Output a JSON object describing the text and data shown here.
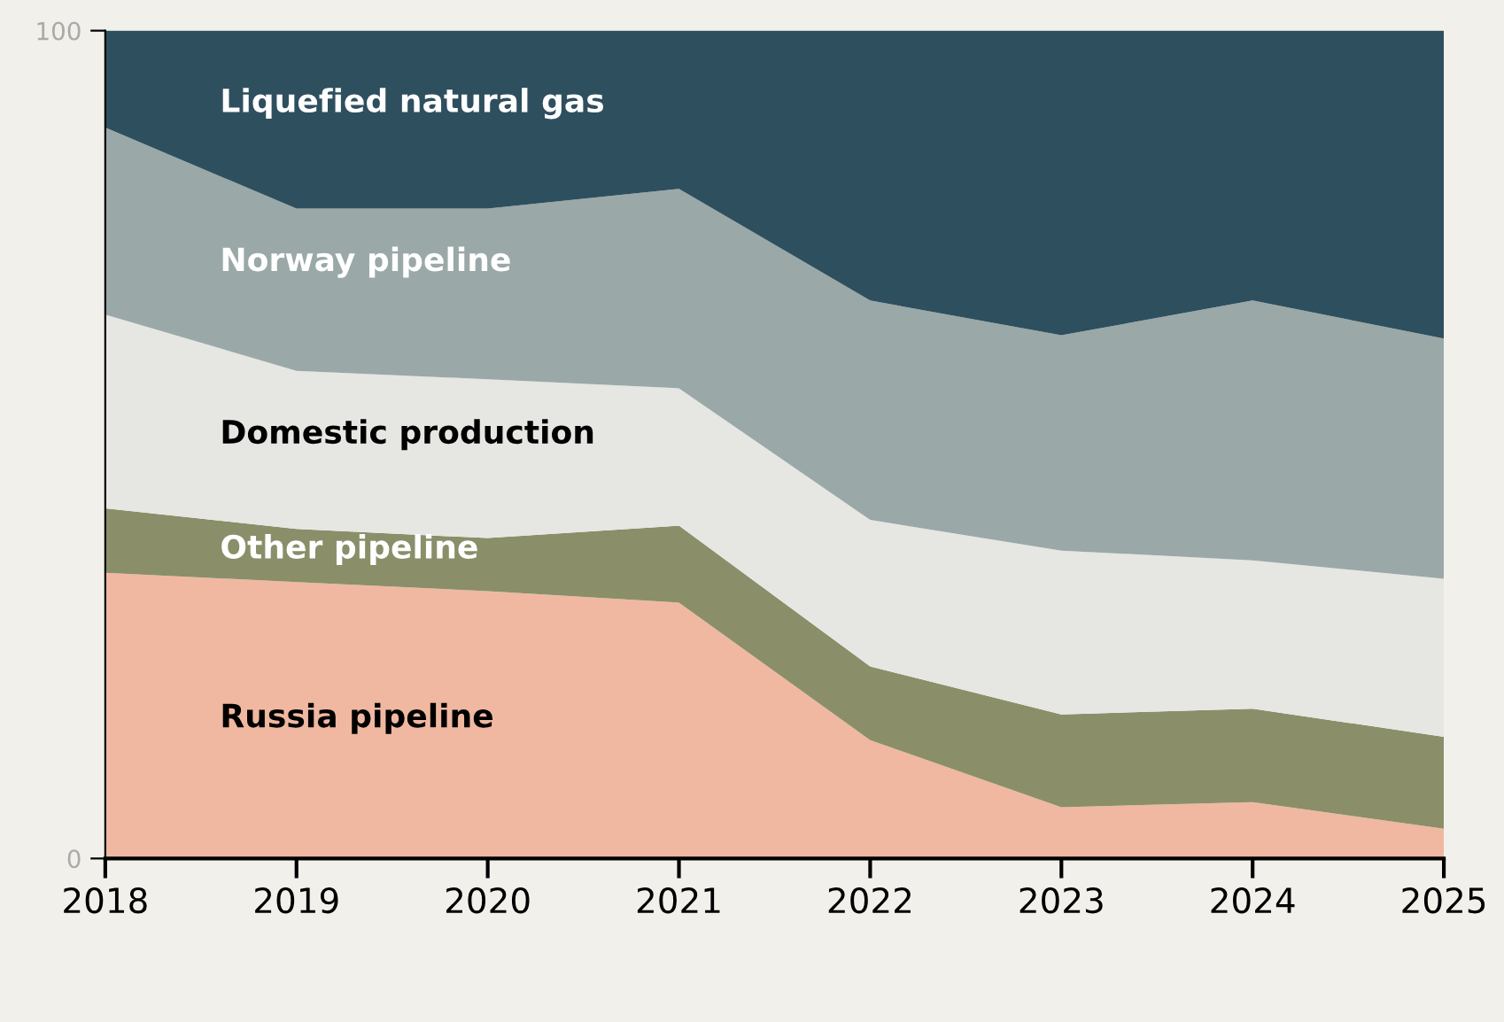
{
  "chart_data": {
    "type": "area",
    "stacked": true,
    "x": [
      2018,
      2019,
      2020,
      2021,
      2022,
      2023,
      2024,
      2025
    ],
    "series": [
      {
        "name": "Russia pipeline",
        "color": "#f0b8a0",
        "values": [
          34.5,
          33.4,
          32.3,
          30.9,
          14.3,
          6.2,
          6.8,
          3.6
        ]
      },
      {
        "name": "Other pipeline",
        "color": "#8a8f6a",
        "values": [
          7.8,
          6.4,
          6.4,
          9.3,
          8.9,
          11.2,
          11.3,
          11.1
        ]
      },
      {
        "name": "Domestic production",
        "color": "#e6e6e2",
        "values": [
          23.4,
          19.1,
          19.2,
          16.6,
          17.7,
          19.8,
          17.9,
          19.1
        ]
      },
      {
        "name": "Norway pipeline",
        "color": "#9aa8a8",
        "values": [
          22.6,
          19.6,
          20.6,
          24.1,
          26.5,
          26.0,
          31.4,
          29.0
        ]
      },
      {
        "name": "Liquefied natural gas",
        "color": "#2e4f5e",
        "values": [
          11.7,
          21.5,
          21.5,
          19.1,
          32.6,
          36.8,
          32.6,
          37.2
        ]
      }
    ],
    "xlim": [
      2018,
      2025
    ],
    "xticks": [
      2018,
      2019,
      2020,
      2021,
      2022,
      2023,
      2024,
      2025
    ],
    "ylim": [
      0,
      100
    ],
    "yticks": [
      0,
      100
    ],
    "grid": false,
    "legend": false
  }
}
